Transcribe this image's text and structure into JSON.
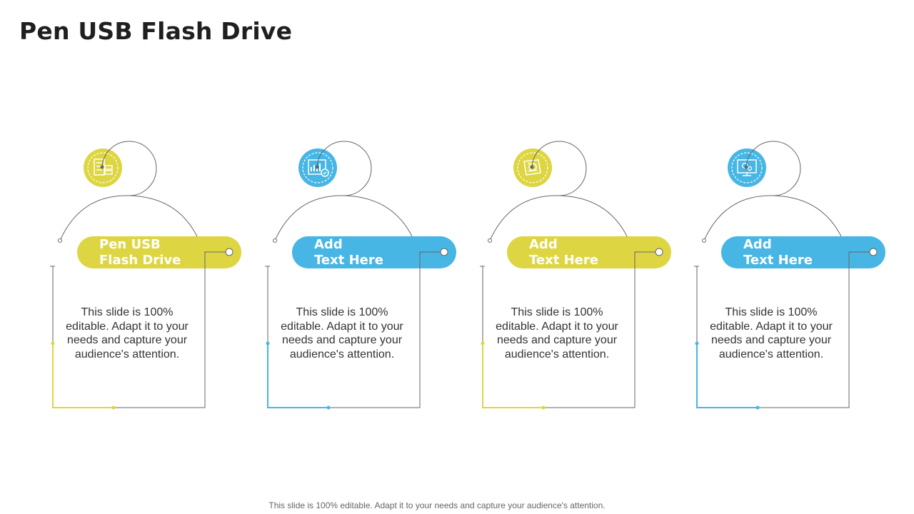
{
  "page": {
    "title": "Pen USB Flash Drive"
  },
  "colors": {
    "yellow": "#DDD642",
    "blue": "#47B6E4",
    "line": "#666666"
  },
  "cards": [
    {
      "heading_line1": "Pen USB",
      "heading_line2": "Flash Drive",
      "text": "This slide is 100% editable. Adapt it to your needs and capture your audience's attention.",
      "color": "yellow",
      "icon": "server-document-icon"
    },
    {
      "heading_line1": "Add",
      "heading_line2": "Text Here",
      "text": "This slide is 100% editable. Adapt it to your needs and capture your audience's attention.",
      "color": "blue",
      "icon": "chart-report-icon"
    },
    {
      "heading_line1": "Add",
      "heading_line2": "Text Here",
      "text": "This slide is 100% editable. Adapt it to your needs and capture your audience's attention.",
      "color": "yellow",
      "icon": "certificate-icon"
    },
    {
      "heading_line1": "Add",
      "heading_line2": "Text Here",
      "text": "This slide is 100% editable. Adapt it to your needs and capture your audience's attention.",
      "color": "blue",
      "icon": "monitor-settings-icon"
    }
  ],
  "footer": {
    "text": "This slide is 100% editable. Adapt it to your needs and capture your audience's attention."
  }
}
